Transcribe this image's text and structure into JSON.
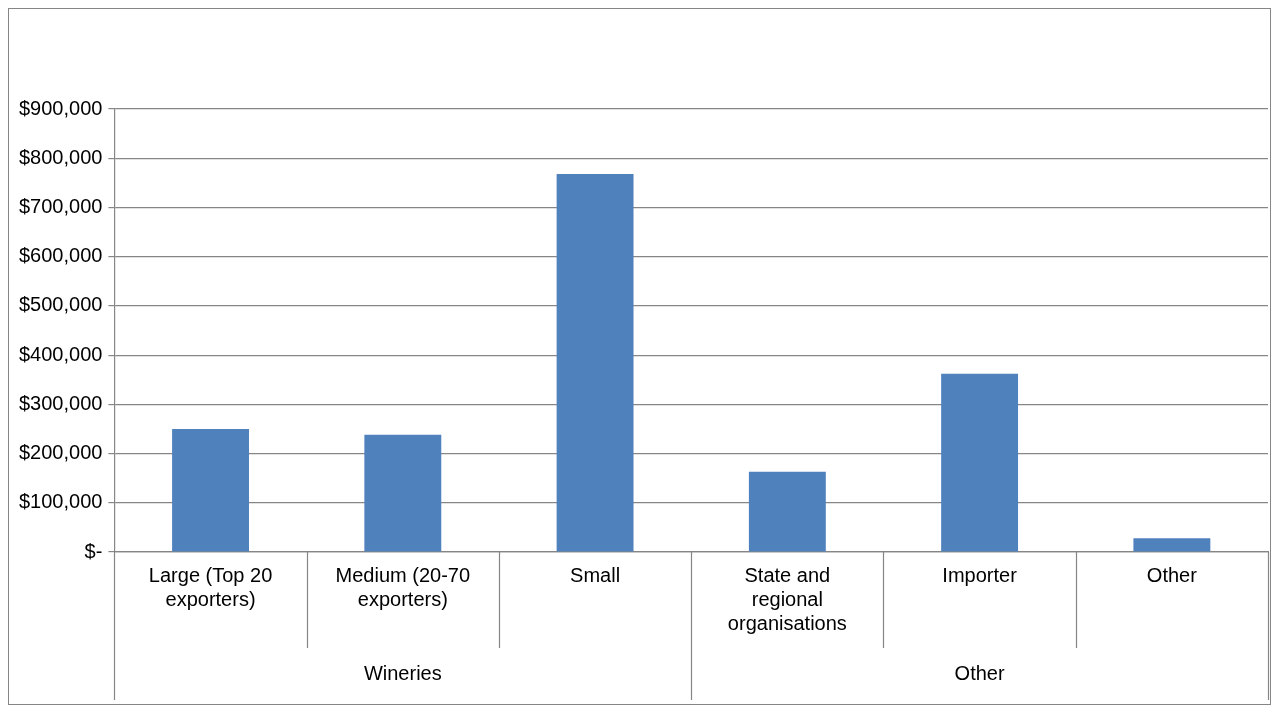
{
  "chart_data": {
    "type": "bar",
    "categories": [
      "Large (Top 20 exporters)",
      "Medium (20-70 exporters)",
      "Small",
      "State and regional organisations",
      "Importer",
      "Other"
    ],
    "values": [
      250000,
      238000,
      768000,
      163000,
      362000,
      28000
    ],
    "color": "#4f81bd",
    "ylim": [
      0,
      900000
    ],
    "yticks": [
      {
        "value": 0,
        "label": "$-"
      },
      {
        "value": 100000,
        "label": "$100,000"
      },
      {
        "value": 200000,
        "label": "$200,000"
      },
      {
        "value": 300000,
        "label": "$300,000"
      },
      {
        "value": 400000,
        "label": "$400,000"
      },
      {
        "value": 500000,
        "label": "$500,000"
      },
      {
        "value": 600000,
        "label": "$600,000"
      },
      {
        "value": 700000,
        "label": "$700,000"
      },
      {
        "value": 800000,
        "label": "$800,000"
      },
      {
        "value": 900000,
        "label": "$900,000"
      }
    ],
    "annotations": [
      "Wineries",
      "Other"
    ],
    "grid": "y",
    "legend": false
  }
}
